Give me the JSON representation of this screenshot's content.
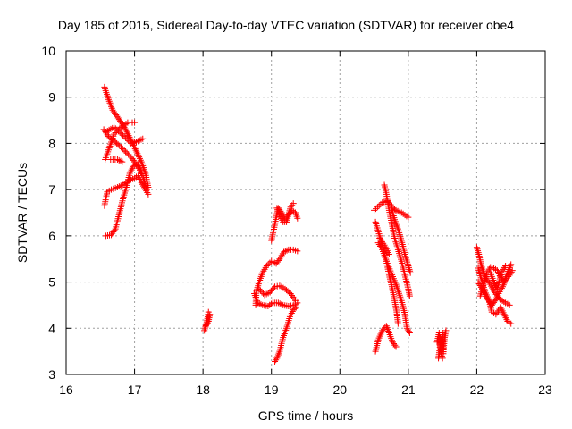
{
  "chart_data": {
    "type": "scatter",
    "title": "Day 185 of 2015, Sidereal Day-to-day VTEC variation (SDTVAR) for receiver obe4",
    "xlabel": "GPS time / hours",
    "ylabel": "SDTVAR / TECUs",
    "xlim": [
      16,
      23
    ],
    "ylim": [
      3,
      10
    ],
    "xticks": [
      16,
      17,
      18,
      19,
      20,
      21,
      22,
      23
    ],
    "yticks": [
      3,
      4,
      5,
      6,
      7,
      8,
      9,
      10
    ],
    "grid": true,
    "marker": "+",
    "color": "#ff0000",
    "tracks": [
      [
        [
          16.56,
          9.22
        ],
        [
          16.62,
          8.95
        ],
        [
          16.68,
          8.72
        ],
        [
          16.76,
          8.55
        ],
        [
          16.85,
          8.35
        ],
        [
          16.94,
          8.1
        ],
        [
          17.02,
          7.85
        ],
        [
          17.1,
          7.6
        ],
        [
          17.16,
          7.35
        ],
        [
          17.2,
          7.05
        ]
      ],
      [
        [
          16.55,
          8.3
        ],
        [
          16.62,
          8.15
        ],
        [
          16.7,
          8.05
        ],
        [
          16.78,
          7.95
        ],
        [
          16.85,
          7.85
        ],
        [
          16.95,
          7.7
        ],
        [
          17.05,
          7.5
        ],
        [
          17.12,
          7.3
        ],
        [
          17.18,
          7.0
        ]
      ],
      [
        [
          16.57,
          7.65
        ],
        [
          16.63,
          7.9
        ],
        [
          16.7,
          8.2
        ],
        [
          16.8,
          8.35
        ],
        [
          16.9,
          8.45
        ],
        [
          17.0,
          8.45
        ]
      ],
      [
        [
          16.58,
          8.25
        ],
        [
          16.7,
          8.35
        ],
        [
          16.85,
          8.15
        ],
        [
          16.95,
          8.0
        ],
        [
          17.05,
          8.05
        ],
        [
          17.12,
          8.1
        ]
      ],
      [
        [
          16.56,
          6.65
        ],
        [
          16.6,
          6.95
        ],
        [
          16.66,
          7.0
        ],
        [
          16.75,
          7.05
        ],
        [
          16.85,
          7.12
        ],
        [
          16.92,
          7.2
        ],
        [
          17.0,
          7.25
        ],
        [
          17.05,
          7.3
        ],
        [
          17.1,
          7.15
        ],
        [
          17.2,
          6.9
        ]
      ],
      [
        [
          16.58,
          6.0
        ],
        [
          16.66,
          6.02
        ],
        [
          16.72,
          6.15
        ],
        [
          16.78,
          6.5
        ],
        [
          16.83,
          6.8
        ],
        [
          16.88,
          7.05
        ],
        [
          16.93,
          7.35
        ],
        [
          16.98,
          7.5
        ],
        [
          17.05,
          7.55
        ],
        [
          17.1,
          7.35
        ]
      ],
      [
        [
          16.65,
          7.65
        ],
        [
          16.75,
          7.65
        ],
        [
          16.82,
          7.6
        ]
      ],
      [
        [
          18.02,
          3.95
        ],
        [
          18.05,
          4.1
        ],
        [
          18.07,
          4.25
        ],
        [
          18.08,
          4.35
        ]
      ],
      [
        [
          18.04,
          4.05
        ],
        [
          18.08,
          4.15
        ],
        [
          18.1,
          4.3
        ]
      ],
      [
        [
          18.77,
          4.5
        ],
        [
          18.78,
          4.8
        ],
        [
          18.82,
          5.0
        ],
        [
          18.87,
          5.2
        ],
        [
          18.93,
          5.35
        ],
        [
          19.0,
          5.45
        ],
        [
          19.07,
          5.4
        ],
        [
          19.12,
          5.5
        ],
        [
          19.18,
          5.65
        ],
        [
          19.25,
          5.7
        ],
        [
          19.32,
          5.7
        ],
        [
          19.38,
          5.67
        ]
      ],
      [
        [
          18.75,
          4.75
        ],
        [
          18.8,
          4.55
        ],
        [
          18.87,
          4.5
        ],
        [
          18.95,
          4.48
        ],
        [
          19.02,
          4.55
        ],
        [
          19.1,
          4.55
        ],
        [
          19.17,
          4.5
        ],
        [
          19.25,
          4.48
        ],
        [
          19.32,
          4.5
        ],
        [
          19.38,
          4.55
        ]
      ],
      [
        [
          18.82,
          4.85
        ],
        [
          18.9,
          4.72
        ],
        [
          18.98,
          4.78
        ],
        [
          19.05,
          4.9
        ],
        [
          19.12,
          4.92
        ],
        [
          19.2,
          4.85
        ],
        [
          19.28,
          4.75
        ],
        [
          19.35,
          4.6
        ]
      ],
      [
        [
          19.05,
          3.28
        ],
        [
          19.08,
          3.35
        ],
        [
          19.12,
          3.5
        ],
        [
          19.17,
          3.8
        ],
        [
          19.22,
          4.0
        ],
        [
          19.27,
          4.25
        ],
        [
          19.32,
          4.4
        ],
        [
          19.36,
          4.45
        ]
      ],
      [
        [
          19.0,
          5.9
        ],
        [
          19.03,
          6.1
        ],
        [
          19.07,
          6.4
        ],
        [
          19.1,
          6.6
        ],
        [
          19.15,
          6.5
        ],
        [
          19.2,
          6.35
        ],
        [
          19.25,
          6.45
        ],
        [
          19.3,
          6.55
        ],
        [
          19.35,
          6.5
        ],
        [
          19.38,
          6.38
        ]
      ],
      [
        [
          19.08,
          6.6
        ],
        [
          19.12,
          6.45
        ],
        [
          19.17,
          6.3
        ],
        [
          19.22,
          6.3
        ],
        [
          19.28,
          6.62
        ],
        [
          19.32,
          6.7
        ]
      ],
      [
        [
          20.5,
          6.55
        ],
        [
          20.55,
          6.62
        ],
        [
          20.62,
          6.72
        ],
        [
          20.7,
          6.75
        ],
        [
          20.78,
          6.6
        ],
        [
          20.82,
          6.55
        ],
        [
          20.9,
          6.5
        ],
        [
          20.95,
          6.45
        ],
        [
          21.0,
          6.4
        ]
      ],
      [
        [
          20.52,
          6.3
        ],
        [
          20.58,
          6.0
        ],
        [
          20.63,
          5.75
        ],
        [
          20.68,
          5.45
        ],
        [
          20.72,
          5.15
        ],
        [
          20.76,
          4.9
        ],
        [
          20.8,
          4.6
        ],
        [
          20.83,
          4.35
        ],
        [
          20.85,
          4.1
        ]
      ],
      [
        [
          20.56,
          5.85
        ],
        [
          20.62,
          5.7
        ],
        [
          20.68,
          5.45
        ],
        [
          20.75,
          5.2
        ],
        [
          20.82,
          4.95
        ],
        [
          20.9,
          4.6
        ],
        [
          20.95,
          4.3
        ],
        [
          20.98,
          4.0
        ],
        [
          21.02,
          3.9
        ]
      ],
      [
        [
          20.65,
          7.1
        ],
        [
          20.68,
          6.9
        ],
        [
          20.72,
          6.55
        ],
        [
          20.76,
          6.25
        ],
        [
          20.8,
          5.95
        ],
        [
          20.85,
          5.7
        ],
        [
          20.9,
          5.45
        ],
        [
          20.95,
          5.15
        ],
        [
          21.0,
          4.85
        ],
        [
          21.02,
          4.7
        ]
      ],
      [
        [
          20.75,
          6.6
        ],
        [
          20.8,
          6.35
        ],
        [
          20.85,
          6.15
        ],
        [
          20.9,
          5.9
        ],
        [
          20.95,
          5.6
        ],
        [
          21.0,
          5.35
        ],
        [
          21.03,
          5.2
        ]
      ],
      [
        [
          20.52,
          3.5
        ],
        [
          20.56,
          3.75
        ],
        [
          20.62,
          3.95
        ],
        [
          20.68,
          4.05
        ],
        [
          20.72,
          3.9
        ],
        [
          20.77,
          3.7
        ],
        [
          20.82,
          3.6
        ]
      ],
      [
        [
          20.58,
          5.95
        ],
        [
          20.65,
          5.8
        ],
        [
          20.72,
          5.6
        ]
      ],
      [
        [
          21.44,
          3.35
        ],
        [
          21.46,
          3.55
        ],
        [
          21.47,
          3.8
        ],
        [
          21.48,
          3.65
        ],
        [
          21.5,
          3.9
        ],
        [
          21.51,
          3.45
        ],
        [
          21.53,
          3.8
        ],
        [
          21.55,
          3.95
        ]
      ],
      [
        [
          21.42,
          3.7
        ],
        [
          21.45,
          3.9
        ],
        [
          21.48,
          3.45
        ],
        [
          21.5,
          3.35
        ]
      ],
      [
        [
          22.0,
          5.75
        ],
        [
          22.03,
          5.6
        ],
        [
          22.06,
          5.4
        ],
        [
          22.1,
          5.2
        ],
        [
          22.15,
          5.05
        ],
        [
          22.2,
          4.95
        ],
        [
          22.25,
          4.8
        ],
        [
          22.3,
          4.7
        ],
        [
          22.35,
          4.62
        ],
        [
          22.42,
          4.55
        ],
        [
          22.48,
          4.5
        ]
      ],
      [
        [
          22.02,
          5.3
        ],
        [
          22.07,
          5.05
        ],
        [
          22.12,
          4.8
        ],
        [
          22.18,
          4.6
        ],
        [
          22.22,
          4.35
        ],
        [
          22.28,
          4.3
        ],
        [
          22.35,
          4.45
        ],
        [
          22.4,
          4.3
        ],
        [
          22.45,
          4.15
        ],
        [
          22.5,
          4.1
        ]
      ],
      [
        [
          22.05,
          4.7
        ],
        [
          22.1,
          4.95
        ],
        [
          22.15,
          5.2
        ],
        [
          22.2,
          5.32
        ],
        [
          22.25,
          5.3
        ],
        [
          22.3,
          5.25
        ],
        [
          22.35,
          5.1
        ],
        [
          22.4,
          5.0
        ],
        [
          22.45,
          5.2
        ],
        [
          22.5,
          5.38
        ]
      ],
      [
        [
          22.02,
          5.0
        ],
        [
          22.08,
          4.85
        ],
        [
          22.15,
          4.65
        ],
        [
          22.22,
          4.5
        ],
        [
          22.28,
          4.62
        ],
        [
          22.32,
          4.75
        ],
        [
          22.38,
          4.9
        ],
        [
          22.42,
          5.05
        ],
        [
          22.48,
          5.15
        ],
        [
          22.52,
          5.25
        ]
      ],
      [
        [
          22.2,
          5.2
        ],
        [
          22.25,
          5.0
        ],
        [
          22.3,
          4.85
        ],
        [
          22.36,
          5.2
        ],
        [
          22.42,
          5.35
        ]
      ]
    ]
  }
}
